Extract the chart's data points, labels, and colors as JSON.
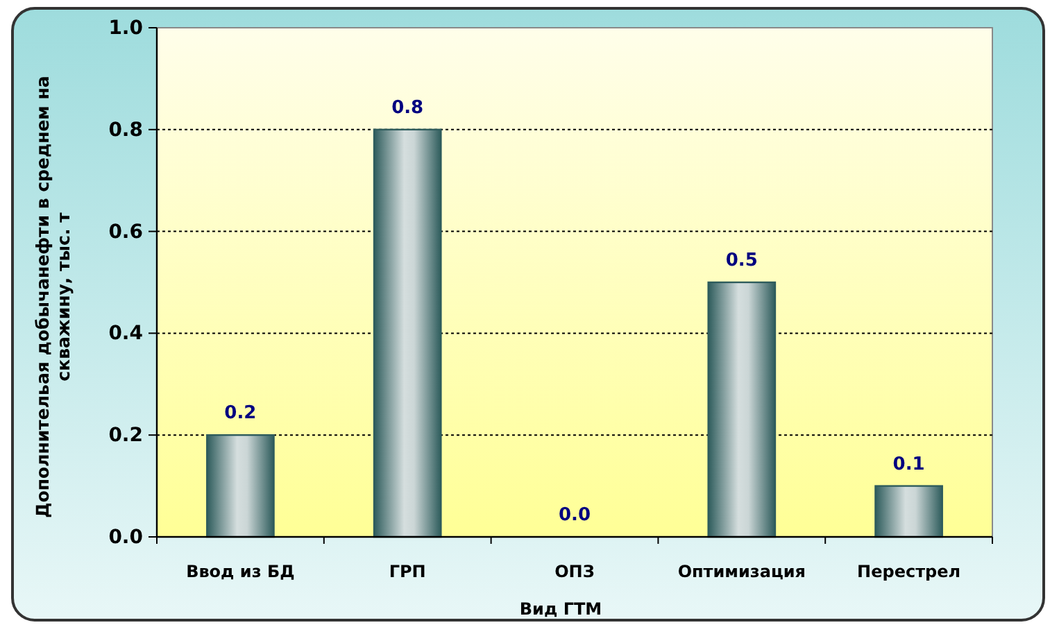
{
  "chart_data": {
    "type": "bar",
    "categories": [
      "Ввод из БД",
      "ГРП",
      "ОПЗ",
      "Оптимизация",
      "Перестрел"
    ],
    "values": [
      0.2,
      0.8,
      0.0,
      0.5,
      0.1
    ],
    "value_labels": [
      "0.2",
      "0.8",
      "0.0",
      "0.5",
      "0.1"
    ],
    "color": "#2e5c5c",
    "xlabel": "Вид ГТМ",
    "ylabel": "Дополнительая добычанефти в среднем на скважину, тыс. т",
    "ylim": [
      0,
      1
    ],
    "yticks": [
      {
        "value": 0,
        "label": "0.0"
      },
      {
        "value": 0.2,
        "label": "0.2"
      },
      {
        "value": 0.4,
        "label": "0.4"
      },
      {
        "value": 0.6,
        "label": "0.6"
      },
      {
        "value": 0.8,
        "label": "0.8"
      },
      {
        "value": 1,
        "label": "1.0"
      }
    ],
    "grid": "y"
  }
}
